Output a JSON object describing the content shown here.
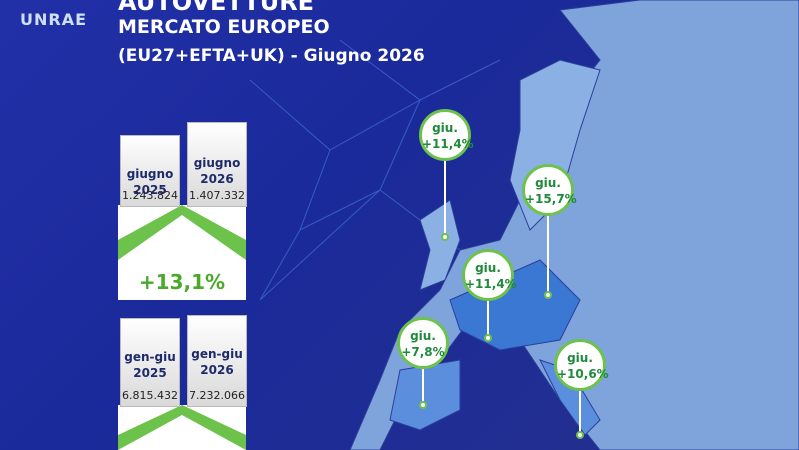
{
  "logo": "UNRAE",
  "header": {
    "title": "AUTOVETTURE",
    "subtitle": "MERCATO EUROPEO",
    "scope": "(EU27+EFTA+UK) - Giugno 2026"
  },
  "monthly": {
    "left": {
      "label": "giugno 2025",
      "value": "1.243.824"
    },
    "right": {
      "label": "giugno 2026",
      "value": "1.407.332"
    },
    "change": "+13,1%"
  },
  "ytd": {
    "left": {
      "label": "gen-giu 2025",
      "value": "6.815.432"
    },
    "right": {
      "label": "gen-giu 2026",
      "value": "7.232.066"
    }
  },
  "markers": [
    {
      "period": "giu.",
      "change": "+11,4%"
    },
    {
      "period": "giu.",
      "change": "+15,7%"
    },
    {
      "period": "giu.",
      "change": "+11,4%"
    },
    {
      "period": "giu.",
      "change": "+7,8%"
    },
    {
      "period": "giu.",
      "change": "+10,6%"
    }
  ]
}
